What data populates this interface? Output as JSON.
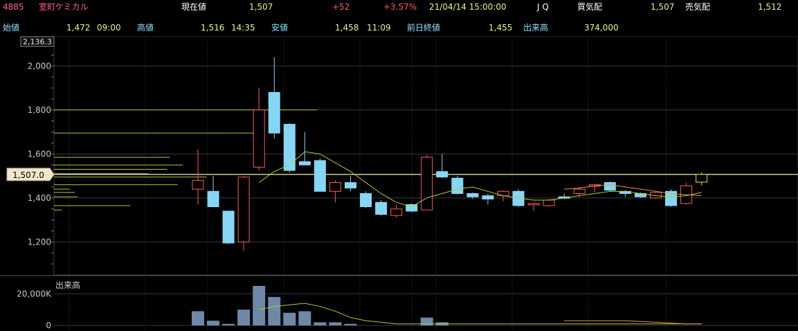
{
  "header": {
    "code": "4885",
    "name": "室町ケミカル",
    "price_label": "現在値",
    "price": "1,507",
    "change": "+52",
    "change_pct": "+3.57%",
    "datetime": "21/04/14  15:00:00",
    "market": "J Q",
    "bid_label": "買気配",
    "bid": "1,507",
    "ask_label": "売気配",
    "ask": "1,512"
  },
  "row2": {
    "open_label": "始値",
    "open": "1,472",
    "open_time": "09:00",
    "high_label": "高値",
    "high": "1,516",
    "high_time": "14:35",
    "low_label": "安値",
    "low": "1,458",
    "low_time": "11:09",
    "prev_label": "前日終値",
    "prev": "1,455",
    "volume_label": "出来高",
    "volume": "374,000"
  },
  "colors": {
    "up_border": "#ff5a5a",
    "down_fill": "#86d6f5",
    "ma_short": "#a9d42a",
    "ma_long": "#e89a40",
    "volume_bar": "#6f88a8",
    "current_line": "#f2f2c0",
    "grid": "#333a44"
  },
  "chart_data": {
    "type": "candlestick",
    "price_axis": {
      "ticks": [
        "1,200",
        "1,400",
        "1,600",
        "1,800",
        "2,000"
      ],
      "top_label": "2,136.3",
      "current_label": "1,507.0",
      "current_value": 1507,
      "ylim": [
        1050,
        2136.3
      ]
    },
    "candles": [
      {
        "o": 1440,
        "h": 1620,
        "l": 1370,
        "c": 1480
      },
      {
        "o": 1430,
        "h": 1500,
        "l": 1360,
        "c": 1360
      },
      {
        "o": 1340,
        "h": 1340,
        "l": 1190,
        "c": 1195
      },
      {
        "o": 1200,
        "h": 1500,
        "l": 1160,
        "c": 1495
      },
      {
        "o": 1540,
        "h": 1900,
        "l": 1525,
        "c": 1800
      },
      {
        "o": 1880,
        "h": 2040,
        "l": 1670,
        "c": 1695
      },
      {
        "o": 1735,
        "h": 1740,
        "l": 1515,
        "c": 1525
      },
      {
        "o": 1565,
        "h": 1700,
        "l": 1550,
        "c": 1550
      },
      {
        "o": 1570,
        "h": 1580,
        "l": 1430,
        "c": 1430
      },
      {
        "o": 1430,
        "h": 1480,
        "l": 1380,
        "c": 1470
      },
      {
        "o": 1470,
        "h": 1500,
        "l": 1430,
        "c": 1445
      },
      {
        "o": 1420,
        "h": 1430,
        "l": 1355,
        "c": 1360
      },
      {
        "o": 1380,
        "h": 1390,
        "l": 1320,
        "c": 1325
      },
      {
        "o": 1320,
        "h": 1370,
        "l": 1310,
        "c": 1350
      },
      {
        "o": 1370,
        "h": 1375,
        "l": 1335,
        "c": 1340
      },
      {
        "o": 1345,
        "h": 1595,
        "l": 1345,
        "c": 1585
      },
      {
        "o": 1520,
        "h": 1600,
        "l": 1490,
        "c": 1495
      },
      {
        "o": 1490,
        "h": 1500,
        "l": 1415,
        "c": 1420
      },
      {
        "o": 1420,
        "h": 1425,
        "l": 1395,
        "c": 1405
      },
      {
        "o": 1410,
        "h": 1420,
        "l": 1370,
        "c": 1395
      },
      {
        "o": 1410,
        "h": 1435,
        "l": 1385,
        "c": 1430
      },
      {
        "o": 1430,
        "h": 1440,
        "l": 1360,
        "c": 1365
      },
      {
        "o": 1375,
        "h": 1380,
        "l": 1340,
        "c": 1375
      },
      {
        "o": 1365,
        "h": 1395,
        "l": 1360,
        "c": 1390
      },
      {
        "o": 1405,
        "h": 1420,
        "l": 1395,
        "c": 1400
      },
      {
        "o": 1420,
        "h": 1450,
        "l": 1405,
        "c": 1440
      },
      {
        "o": 1455,
        "h": 1465,
        "l": 1425,
        "c": 1460
      },
      {
        "o": 1470,
        "h": 1475,
        "l": 1430,
        "c": 1435
      },
      {
        "o": 1430,
        "h": 1435,
        "l": 1405,
        "c": 1420
      },
      {
        "o": 1420,
        "h": 1425,
        "l": 1400,
        "c": 1405
      },
      {
        "o": 1400,
        "h": 1430,
        "l": 1395,
        "c": 1425
      },
      {
        "o": 1430,
        "h": 1440,
        "l": 1360,
        "c": 1365
      },
      {
        "o": 1375,
        "h": 1470,
        "l": 1370,
        "c": 1455
      },
      {
        "o": 1472,
        "h": 1516,
        "l": 1458,
        "c": 1507
      }
    ],
    "candle_x_start": 0,
    "ma_short": [
      null,
      null,
      null,
      null,
      1470,
      1520,
      1550,
      1610,
      1600,
      1560,
      1520,
      1470,
      1420,
      1380,
      1360,
      1400,
      1420,
      1440,
      1450,
      1430,
      1410,
      1400,
      1390,
      1390,
      1400,
      1410,
      1420,
      1430,
      1430,
      1420,
      1410,
      1405,
      1410,
      1425
    ],
    "ma_long": [
      null,
      null,
      null,
      null,
      null,
      null,
      null,
      null,
      null,
      null,
      null,
      null,
      null,
      null,
      null,
      null,
      null,
      null,
      null,
      null,
      null,
      null,
      null,
      null,
      1440,
      1445,
      1455,
      1460,
      1450,
      1440,
      1430,
      1420,
      1415,
      1410
    ],
    "volume_axis": {
      "label": "出来高",
      "ticks": [
        "20,000K",
        "0"
      ]
    },
    "volume": [
      9,
      3,
      1,
      10,
      25,
      18,
      8,
      9,
      2,
      2,
      1,
      0,
      0,
      0,
      0,
      5,
      2,
      0,
      0,
      0,
      0,
      0,
      0,
      0,
      0,
      0,
      0,
      0,
      0,
      0,
      0,
      0,
      0,
      0
    ],
    "volume_ma": [
      null,
      null,
      null,
      null,
      10,
      12,
      13,
      14,
      12,
      9,
      5,
      3,
      2,
      1,
      1,
      1,
      1,
      1,
      1,
      1,
      1,
      1,
      1,
      1,
      1,
      1,
      1,
      1,
      1,
      1,
      1,
      1,
      1,
      1
    ],
    "volume_ma_long": [
      null,
      null,
      null,
      null,
      null,
      null,
      null,
      null,
      null,
      null,
      null,
      null,
      null,
      null,
      null,
      null,
      null,
      null,
      null,
      null,
      null,
      null,
      null,
      null,
      3,
      3,
      3,
      3,
      3,
      2.5,
      2,
      1.5,
      1,
      1
    ],
    "price_by_volume": [
      {
        "price": 1800,
        "amount": 1.0
      },
      {
        "price": 1695,
        "amount": 0.78
      },
      {
        "price": 1585,
        "amount": 0.44
      },
      {
        "price": 1550,
        "amount": 0.49
      },
      {
        "price": 1530,
        "amount": 0.43
      },
      {
        "price": 1510,
        "amount": 0.36
      },
      {
        "price": 1495,
        "amount": 0.58
      },
      {
        "price": 1460,
        "amount": 0.47
      },
      {
        "price": 1440,
        "amount": 0.06
      },
      {
        "price": 1425,
        "amount": 0.08
      },
      {
        "price": 1405,
        "amount": 0.09
      },
      {
        "price": 1365,
        "amount": 0.29
      },
      {
        "price": 1345,
        "amount": 0.03
      }
    ]
  }
}
